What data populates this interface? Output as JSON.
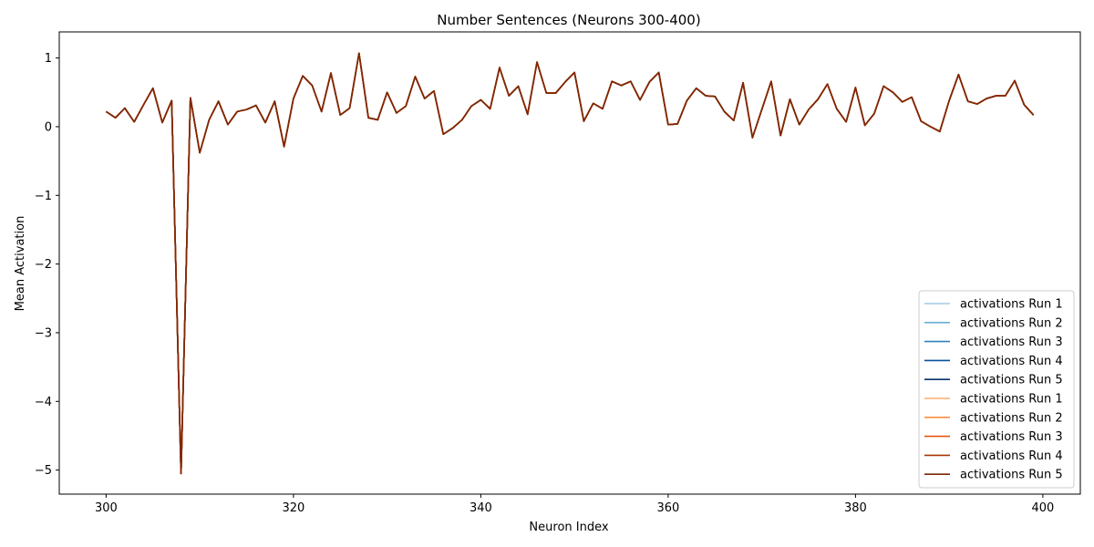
{
  "chart_data": {
    "type": "line",
    "title": "Number Sentences (Neurons 300-400)",
    "xlabel": "Neuron Index",
    "ylabel": "Mean Activation",
    "xlim": [
      295,
      404
    ],
    "ylim": [
      -5.35,
      1.38
    ],
    "xticks": [
      300,
      320,
      340,
      360,
      380,
      400
    ],
    "yticks": [
      1,
      0,
      -1,
      -2,
      -3,
      -4,
      -5
    ],
    "ytick_labels": [
      "1",
      "0",
      "−1",
      "−2",
      "−3",
      "−4",
      "−5"
    ],
    "grid": false,
    "legend_position": "lower-right",
    "x": [
      300,
      301,
      302,
      303,
      304,
      305,
      306,
      307,
      308,
      309,
      310,
      311,
      312,
      313,
      314,
      315,
      316,
      317,
      318,
      319,
      320,
      321,
      322,
      323,
      324,
      325,
      326,
      327,
      328,
      329,
      330,
      331,
      332,
      333,
      334,
      335,
      336,
      337,
      338,
      339,
      340,
      341,
      342,
      343,
      344,
      345,
      346,
      347,
      348,
      349,
      350,
      351,
      352,
      353,
      354,
      355,
      356,
      357,
      358,
      359,
      360,
      361,
      362,
      363,
      364,
      365,
      366,
      367,
      368,
      369,
      370,
      371,
      372,
      373,
      374,
      375,
      376,
      377,
      378,
      379,
      380,
      381,
      382,
      383,
      384,
      385,
      386,
      387,
      388,
      389,
      390,
      391,
      392,
      393,
      394,
      395,
      396,
      397,
      398,
      399
    ],
    "series": [
      {
        "name": "activations Run 1",
        "color": "#9ecae1",
        "values": [
          0.22,
          0.13,
          0.27,
          0.07,
          0.32,
          0.56,
          0.06,
          0.38,
          -5.05,
          0.42,
          -0.38,
          0.1,
          0.37,
          0.03,
          0.22,
          0.25,
          0.31,
          0.06,
          0.37,
          -0.29,
          0.41,
          0.74,
          0.6,
          0.22,
          0.78,
          0.17,
          0.27,
          1.07,
          0.13,
          0.1,
          0.5,
          0.2,
          0.3,
          0.73,
          0.41,
          0.52,
          -0.11,
          -0.02,
          0.1,
          0.3,
          0.39,
          0.26,
          0.86,
          0.45,
          0.59,
          0.18,
          0.94,
          0.49,
          0.49,
          0.65,
          0.79,
          0.08,
          0.34,
          0.26,
          0.66,
          0.6,
          0.66,
          0.39,
          0.65,
          0.79,
          0.03,
          0.04,
          0.38,
          0.56,
          0.45,
          0.44,
          0.22,
          0.09,
          0.64,
          -0.16,
          0.25,
          0.66,
          -0.13,
          0.4,
          0.03,
          0.25,
          0.4,
          0.62,
          0.26,
          0.07,
          0.57,
          0.02,
          0.19,
          0.59,
          0.5,
          0.36,
          0.43,
          0.08,
          0.0,
          -0.07,
          0.38,
          0.76,
          0.37,
          0.33,
          0.41,
          0.45,
          0.45,
          0.67,
          0.32,
          0.17
        ]
      },
      {
        "name": "activations Run 2",
        "color": "#6baed6",
        "values": [
          0.22,
          0.13,
          0.27,
          0.07,
          0.32,
          0.56,
          0.06,
          0.38,
          -5.05,
          0.42,
          -0.38,
          0.1,
          0.37,
          0.03,
          0.22,
          0.25,
          0.31,
          0.06,
          0.37,
          -0.29,
          0.41,
          0.74,
          0.6,
          0.22,
          0.78,
          0.17,
          0.27,
          1.07,
          0.13,
          0.1,
          0.5,
          0.2,
          0.3,
          0.73,
          0.41,
          0.52,
          -0.11,
          -0.02,
          0.1,
          0.3,
          0.39,
          0.26,
          0.86,
          0.45,
          0.59,
          0.18,
          0.94,
          0.49,
          0.49,
          0.65,
          0.79,
          0.08,
          0.34,
          0.26,
          0.66,
          0.6,
          0.66,
          0.39,
          0.65,
          0.79,
          0.03,
          0.04,
          0.38,
          0.56,
          0.45,
          0.44,
          0.22,
          0.09,
          0.64,
          -0.16,
          0.25,
          0.66,
          -0.13,
          0.4,
          0.03,
          0.25,
          0.4,
          0.62,
          0.26,
          0.07,
          0.57,
          0.02,
          0.19,
          0.59,
          0.5,
          0.36,
          0.43,
          0.08,
          0.0,
          -0.07,
          0.38,
          0.76,
          0.37,
          0.33,
          0.41,
          0.45,
          0.45,
          0.67,
          0.32,
          0.17
        ]
      },
      {
        "name": "activations Run 3",
        "color": "#3182bd",
        "values": [
          0.22,
          0.13,
          0.27,
          0.07,
          0.32,
          0.56,
          0.06,
          0.38,
          -5.05,
          0.42,
          -0.38,
          0.1,
          0.37,
          0.03,
          0.22,
          0.25,
          0.31,
          0.06,
          0.37,
          -0.29,
          0.41,
          0.74,
          0.6,
          0.22,
          0.78,
          0.17,
          0.27,
          1.07,
          0.13,
          0.1,
          0.5,
          0.2,
          0.3,
          0.73,
          0.41,
          0.52,
          -0.11,
          -0.02,
          0.1,
          0.3,
          0.39,
          0.26,
          0.86,
          0.45,
          0.59,
          0.18,
          0.94,
          0.49,
          0.49,
          0.65,
          0.79,
          0.08,
          0.34,
          0.26,
          0.66,
          0.6,
          0.66,
          0.39,
          0.65,
          0.79,
          0.03,
          0.04,
          0.38,
          0.56,
          0.45,
          0.44,
          0.22,
          0.09,
          0.64,
          -0.16,
          0.25,
          0.66,
          -0.13,
          0.4,
          0.03,
          0.25,
          0.4,
          0.62,
          0.26,
          0.07,
          0.57,
          0.02,
          0.19,
          0.59,
          0.5,
          0.36,
          0.43,
          0.08,
          0.0,
          -0.07,
          0.38,
          0.76,
          0.37,
          0.33,
          0.41,
          0.45,
          0.45,
          0.67,
          0.32,
          0.17
        ]
      },
      {
        "name": "activations Run 4",
        "color": "#08519c",
        "values": [
          0.22,
          0.13,
          0.27,
          0.07,
          0.32,
          0.56,
          0.06,
          0.38,
          -5.05,
          0.42,
          -0.38,
          0.1,
          0.37,
          0.03,
          0.22,
          0.25,
          0.31,
          0.06,
          0.37,
          -0.29,
          0.41,
          0.74,
          0.6,
          0.22,
          0.78,
          0.17,
          0.27,
          1.07,
          0.13,
          0.1,
          0.5,
          0.2,
          0.3,
          0.73,
          0.41,
          0.52,
          -0.11,
          -0.02,
          0.1,
          0.3,
          0.39,
          0.26,
          0.86,
          0.45,
          0.59,
          0.18,
          0.94,
          0.49,
          0.49,
          0.65,
          0.79,
          0.08,
          0.34,
          0.26,
          0.66,
          0.6,
          0.66,
          0.39,
          0.65,
          0.79,
          0.03,
          0.04,
          0.38,
          0.56,
          0.45,
          0.44,
          0.22,
          0.09,
          0.64,
          -0.16,
          0.25,
          0.66,
          -0.13,
          0.4,
          0.03,
          0.25,
          0.4,
          0.62,
          0.26,
          0.07,
          0.57,
          0.02,
          0.19,
          0.59,
          0.5,
          0.36,
          0.43,
          0.08,
          0.0,
          -0.07,
          0.38,
          0.76,
          0.37,
          0.33,
          0.41,
          0.45,
          0.45,
          0.67,
          0.32,
          0.17
        ]
      },
      {
        "name": "activations Run 5",
        "color": "#08306b",
        "values": [
          0.22,
          0.13,
          0.27,
          0.07,
          0.32,
          0.56,
          0.06,
          0.38,
          -5.05,
          0.42,
          -0.38,
          0.1,
          0.37,
          0.03,
          0.22,
          0.25,
          0.31,
          0.06,
          0.37,
          -0.29,
          0.41,
          0.74,
          0.6,
          0.22,
          0.78,
          0.17,
          0.27,
          1.07,
          0.13,
          0.1,
          0.5,
          0.2,
          0.3,
          0.73,
          0.41,
          0.52,
          -0.11,
          -0.02,
          0.1,
          0.3,
          0.39,
          0.26,
          0.86,
          0.45,
          0.59,
          0.18,
          0.94,
          0.49,
          0.49,
          0.65,
          0.79,
          0.08,
          0.34,
          0.26,
          0.66,
          0.6,
          0.66,
          0.39,
          0.65,
          0.79,
          0.03,
          0.04,
          0.38,
          0.56,
          0.45,
          0.44,
          0.22,
          0.09,
          0.64,
          -0.16,
          0.25,
          0.66,
          -0.13,
          0.4,
          0.03,
          0.25,
          0.4,
          0.62,
          0.26,
          0.07,
          0.57,
          0.02,
          0.19,
          0.59,
          0.5,
          0.36,
          0.43,
          0.08,
          0.0,
          -0.07,
          0.38,
          0.76,
          0.37,
          0.33,
          0.41,
          0.45,
          0.45,
          0.67,
          0.32,
          0.17
        ]
      },
      {
        "name": "activations Run 1",
        "color": "#fdae6b",
        "values": [
          0.22,
          0.13,
          0.27,
          0.07,
          0.32,
          0.56,
          0.06,
          0.38,
          -5.05,
          0.42,
          -0.38,
          0.1,
          0.37,
          0.03,
          0.22,
          0.25,
          0.31,
          0.06,
          0.37,
          -0.29,
          0.41,
          0.74,
          0.6,
          0.22,
          0.78,
          0.17,
          0.27,
          1.07,
          0.13,
          0.1,
          0.5,
          0.2,
          0.3,
          0.73,
          0.41,
          0.52,
          -0.11,
          -0.02,
          0.1,
          0.3,
          0.39,
          0.26,
          0.86,
          0.45,
          0.59,
          0.18,
          0.94,
          0.49,
          0.49,
          0.65,
          0.79,
          0.08,
          0.34,
          0.26,
          0.66,
          0.6,
          0.66,
          0.39,
          0.65,
          0.79,
          0.03,
          0.04,
          0.38,
          0.56,
          0.45,
          0.44,
          0.22,
          0.09,
          0.64,
          -0.16,
          0.25,
          0.66,
          -0.13,
          0.4,
          0.03,
          0.25,
          0.4,
          0.62,
          0.26,
          0.07,
          0.57,
          0.02,
          0.19,
          0.59,
          0.5,
          0.36,
          0.43,
          0.08,
          0.0,
          -0.07,
          0.38,
          0.76,
          0.37,
          0.33,
          0.41,
          0.45,
          0.45,
          0.67,
          0.32,
          0.17
        ]
      },
      {
        "name": "activations Run 2",
        "color": "#fd8d3c",
        "values": [
          0.22,
          0.13,
          0.27,
          0.07,
          0.32,
          0.56,
          0.06,
          0.38,
          -5.05,
          0.42,
          -0.38,
          0.1,
          0.37,
          0.03,
          0.22,
          0.25,
          0.31,
          0.06,
          0.37,
          -0.29,
          0.41,
          0.74,
          0.6,
          0.22,
          0.78,
          0.17,
          0.27,
          1.07,
          0.13,
          0.1,
          0.5,
          0.2,
          0.3,
          0.73,
          0.41,
          0.52,
          -0.11,
          -0.02,
          0.1,
          0.3,
          0.39,
          0.26,
          0.86,
          0.45,
          0.59,
          0.18,
          0.94,
          0.49,
          0.49,
          0.65,
          0.79,
          0.08,
          0.34,
          0.26,
          0.66,
          0.6,
          0.66,
          0.39,
          0.65,
          0.79,
          0.03,
          0.04,
          0.38,
          0.56,
          0.45,
          0.44,
          0.22,
          0.09,
          0.64,
          -0.16,
          0.25,
          0.66,
          -0.13,
          0.4,
          0.03,
          0.25,
          0.4,
          0.62,
          0.26,
          0.07,
          0.57,
          0.02,
          0.19,
          0.59,
          0.5,
          0.36,
          0.43,
          0.08,
          0.0,
          -0.07,
          0.38,
          0.76,
          0.37,
          0.33,
          0.41,
          0.45,
          0.45,
          0.67,
          0.32,
          0.17
        ]
      },
      {
        "name": "activations Run 3",
        "color": "#e6550d",
        "values": [
          0.22,
          0.13,
          0.27,
          0.07,
          0.32,
          0.56,
          0.06,
          0.38,
          -5.05,
          0.42,
          -0.38,
          0.1,
          0.37,
          0.03,
          0.22,
          0.25,
          0.31,
          0.06,
          0.37,
          -0.29,
          0.41,
          0.74,
          0.6,
          0.22,
          0.78,
          0.17,
          0.27,
          1.07,
          0.13,
          0.1,
          0.5,
          0.2,
          0.3,
          0.73,
          0.41,
          0.52,
          -0.11,
          -0.02,
          0.1,
          0.3,
          0.39,
          0.26,
          0.86,
          0.45,
          0.59,
          0.18,
          0.94,
          0.49,
          0.49,
          0.65,
          0.79,
          0.08,
          0.34,
          0.26,
          0.66,
          0.6,
          0.66,
          0.39,
          0.65,
          0.79,
          0.03,
          0.04,
          0.38,
          0.56,
          0.45,
          0.44,
          0.22,
          0.09,
          0.64,
          -0.16,
          0.25,
          0.66,
          -0.13,
          0.4,
          0.03,
          0.25,
          0.4,
          0.62,
          0.26,
          0.07,
          0.57,
          0.02,
          0.19,
          0.59,
          0.5,
          0.36,
          0.43,
          0.08,
          0.0,
          -0.07,
          0.38,
          0.76,
          0.37,
          0.33,
          0.41,
          0.45,
          0.45,
          0.67,
          0.32,
          0.17
        ]
      },
      {
        "name": "activations Run 4",
        "color": "#a63603",
        "values": [
          0.22,
          0.13,
          0.27,
          0.07,
          0.32,
          0.56,
          0.06,
          0.38,
          -5.05,
          0.42,
          -0.38,
          0.1,
          0.37,
          0.03,
          0.22,
          0.25,
          0.31,
          0.06,
          0.37,
          -0.29,
          0.41,
          0.74,
          0.6,
          0.22,
          0.78,
          0.17,
          0.27,
          1.07,
          0.13,
          0.1,
          0.5,
          0.2,
          0.3,
          0.73,
          0.41,
          0.52,
          -0.11,
          -0.02,
          0.1,
          0.3,
          0.39,
          0.26,
          0.86,
          0.45,
          0.59,
          0.18,
          0.94,
          0.49,
          0.49,
          0.65,
          0.79,
          0.08,
          0.34,
          0.26,
          0.66,
          0.6,
          0.66,
          0.39,
          0.65,
          0.79,
          0.03,
          0.04,
          0.38,
          0.56,
          0.45,
          0.44,
          0.22,
          0.09,
          0.64,
          -0.16,
          0.25,
          0.66,
          -0.13,
          0.4,
          0.03,
          0.25,
          0.4,
          0.62,
          0.26,
          0.07,
          0.57,
          0.02,
          0.19,
          0.59,
          0.5,
          0.36,
          0.43,
          0.08,
          0.0,
          -0.07,
          0.38,
          0.76,
          0.37,
          0.33,
          0.41,
          0.45,
          0.45,
          0.67,
          0.32,
          0.17
        ]
      },
      {
        "name": "activations Run 5",
        "color": "#7f2704",
        "values": [
          0.22,
          0.13,
          0.27,
          0.07,
          0.32,
          0.56,
          0.06,
          0.38,
          -5.05,
          0.42,
          -0.38,
          0.1,
          0.37,
          0.03,
          0.22,
          0.25,
          0.31,
          0.06,
          0.37,
          -0.29,
          0.41,
          0.74,
          0.6,
          0.22,
          0.78,
          0.17,
          0.27,
          1.07,
          0.13,
          0.1,
          0.5,
          0.2,
          0.3,
          0.73,
          0.41,
          0.52,
          -0.11,
          -0.02,
          0.1,
          0.3,
          0.39,
          0.26,
          0.86,
          0.45,
          0.59,
          0.18,
          0.94,
          0.49,
          0.49,
          0.65,
          0.79,
          0.08,
          0.34,
          0.26,
          0.66,
          0.6,
          0.66,
          0.39,
          0.65,
          0.79,
          0.03,
          0.04,
          0.38,
          0.56,
          0.45,
          0.44,
          0.22,
          0.09,
          0.64,
          -0.16,
          0.25,
          0.66,
          -0.13,
          0.4,
          0.03,
          0.25,
          0.4,
          0.62,
          0.26,
          0.07,
          0.57,
          0.02,
          0.19,
          0.59,
          0.5,
          0.36,
          0.43,
          0.08,
          0.0,
          -0.07,
          0.38,
          0.76,
          0.37,
          0.33,
          0.41,
          0.45,
          0.45,
          0.67,
          0.32,
          0.17
        ]
      }
    ]
  }
}
